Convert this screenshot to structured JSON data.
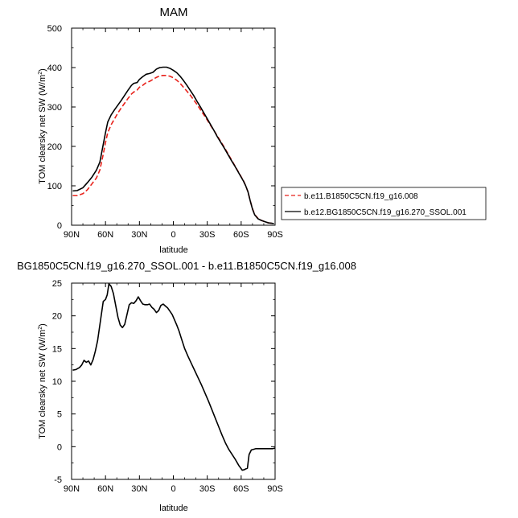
{
  "chart_data": [
    {
      "type": "line",
      "title": "MAM",
      "xlabel": "latitude",
      "ylabel_main": "TOM clearsky net SW (W/m",
      "ylabel_sup": "2",
      "ylabel_tail": ")",
      "xlim": [
        90,
        -90
      ],
      "ylim": [
        0,
        500
      ],
      "x_ticks": [
        90,
        60,
        30,
        0,
        -30,
        -60,
        -90
      ],
      "x_tick_labels": [
        "90N",
        "60N",
        "30N",
        "0",
        "30S",
        "60S",
        "90S"
      ],
      "y_ticks": [
        0,
        100,
        200,
        300,
        400,
        500
      ],
      "y_tick_labels": [
        "0",
        "100",
        "200",
        "300",
        "400",
        "500"
      ],
      "legend_position": "right",
      "series": [
        {
          "name": "b.e11.B1850C5CN.f19_g16.008",
          "color": "#e8211a",
          "dash": "dashed",
          "x": [
            89,
            85,
            80,
            76,
            72,
            68,
            65,
            62,
            60,
            58,
            55,
            52,
            49,
            46,
            43,
            40,
            37,
            35,
            32,
            30,
            27,
            24,
            21,
            18,
            15,
            12,
            9,
            6,
            3,
            0,
            -3,
            -6,
            -9,
            -12,
            -15,
            -18,
            -21,
            -24,
            -27,
            -30,
            -33,
            -36,
            -39,
            -42,
            -45,
            -48,
            -51,
            -54,
            -57,
            -60,
            -62,
            -64,
            -66,
            -68,
            -70,
            -72,
            -75,
            -78,
            -81,
            -84,
            -87,
            -89
          ],
          "y": [
            75,
            75,
            80,
            90,
            105,
            120,
            140,
            180,
            210,
            235,
            255,
            270,
            285,
            298,
            310,
            322,
            333,
            338,
            343,
            350,
            355,
            362,
            365,
            370,
            375,
            379,
            380,
            380,
            378,
            374,
            368,
            360,
            350,
            340,
            330,
            318,
            306,
            293,
            280,
            267,
            253,
            240,
            226,
            212,
            198,
            183,
            168,
            153,
            138,
            123,
            113,
            100,
            85,
            62,
            42,
            27,
            17,
            12,
            9,
            6,
            5,
            4
          ]
        },
        {
          "name": "b.e12.BG1850C5CN.f19_g16.270_SSOL.001",
          "color": "#000000",
          "dash": "solid",
          "x": [
            89,
            85,
            80,
            76,
            72,
            68,
            65,
            62,
            60,
            58,
            55,
            52,
            49,
            46,
            43,
            40,
            37,
            35,
            32,
            30,
            27,
            24,
            21,
            18,
            15,
            12,
            9,
            6,
            3,
            0,
            -3,
            -6,
            -9,
            -12,
            -15,
            -18,
            -21,
            -24,
            -27,
            -30,
            -33,
            -36,
            -39,
            -42,
            -45,
            -48,
            -51,
            -54,
            -57,
            -60,
            -62,
            -64,
            -66,
            -68,
            -70,
            -72,
            -75,
            -78,
            -81,
            -84,
            -87,
            -89
          ],
          "y": [
            87,
            88,
            95,
            108,
            122,
            140,
            160,
            205,
            235,
            262,
            280,
            293,
            305,
            317,
            330,
            343,
            355,
            360,
            362,
            370,
            377,
            383,
            385,
            388,
            396,
            400,
            401,
            401,
            398,
            393,
            387,
            378,
            367,
            355,
            342,
            329,
            314,
            300,
            285,
            270,
            255,
            240,
            224,
            210,
            196,
            181,
            166,
            152,
            137,
            122,
            112,
            100,
            85,
            62,
            41,
            26,
            16,
            12,
            9,
            6,
            5,
            4
          ]
        }
      ]
    },
    {
      "type": "line",
      "title": "BG1850C5CN.f19_g16.270_SSOL.001 - b.e11.B1850C5CN.f19_g16.008",
      "xlabel": "latitude",
      "ylabel_main": "TOM clearsky net SW (W/m",
      "ylabel_sup": "2",
      "ylabel_tail": ")",
      "xlim": [
        90,
        -90
      ],
      "ylim": [
        -5,
        25
      ],
      "x_ticks": [
        90,
        60,
        30,
        0,
        -30,
        -60,
        -90
      ],
      "x_tick_labels": [
        "90N",
        "60N",
        "30N",
        "0",
        "30S",
        "60S",
        "90S"
      ],
      "y_ticks": [
        -5,
        0,
        5,
        10,
        15,
        20,
        25
      ],
      "y_tick_labels": [
        "-5",
        "0",
        "5",
        "10",
        "15",
        "20",
        "25"
      ],
      "series": [
        {
          "color": "#000000",
          "dash": "solid",
          "x": [
            89,
            86,
            83,
            81,
            79,
            77,
            75,
            73,
            71,
            69,
            67,
            64,
            62,
            60,
            58.5,
            57,
            55,
            53,
            51,
            49,
            47,
            45,
            43,
            41,
            39,
            37,
            35,
            33,
            31,
            29,
            27,
            25,
            23,
            21,
            19,
            17,
            15,
            13,
            11,
            9,
            7,
            5,
            3,
            1,
            -1,
            -3,
            -5,
            -7,
            -10,
            -13,
            -16,
            -19,
            -22,
            -25,
            -28,
            -31,
            -34,
            -37,
            -40,
            -43,
            -46,
            -49,
            -52,
            -55,
            -58,
            -61,
            -63,
            -64,
            -65.5,
            -67,
            -69,
            -71,
            -73,
            -76,
            -79,
            -82,
            -85,
            -88,
            -90
          ],
          "y": [
            11.7,
            11.8,
            12.1,
            12.5,
            13.2,
            12.9,
            13.1,
            12.5,
            13.3,
            14.6,
            16.2,
            19.8,
            22.2,
            22.5,
            23.2,
            24.9,
            24.5,
            23.4,
            21.6,
            19.8,
            18.6,
            18.2,
            18.7,
            20.2,
            21.7,
            22.0,
            21.9,
            22.3,
            22.9,
            22.3,
            21.8,
            21.7,
            21.7,
            21.8,
            21.3,
            21.0,
            20.5,
            20.8,
            21.6,
            21.8,
            21.5,
            21.2,
            20.7,
            20.2,
            19.4,
            18.6,
            17.7,
            16.6,
            15.0,
            13.8,
            12.7,
            11.6,
            10.5,
            9.4,
            8.2,
            7.0,
            5.7,
            4.4,
            3.1,
            1.8,
            0.6,
            -0.4,
            -1.2,
            -2.0,
            -2.9,
            -3.6,
            -3.5,
            -3.4,
            -3.3,
            -1.2,
            -0.5,
            -0.4,
            -0.3,
            -0.3,
            -0.3,
            -0.3,
            -0.3,
            -0.3,
            -0.2
          ]
        }
      ]
    }
  ]
}
